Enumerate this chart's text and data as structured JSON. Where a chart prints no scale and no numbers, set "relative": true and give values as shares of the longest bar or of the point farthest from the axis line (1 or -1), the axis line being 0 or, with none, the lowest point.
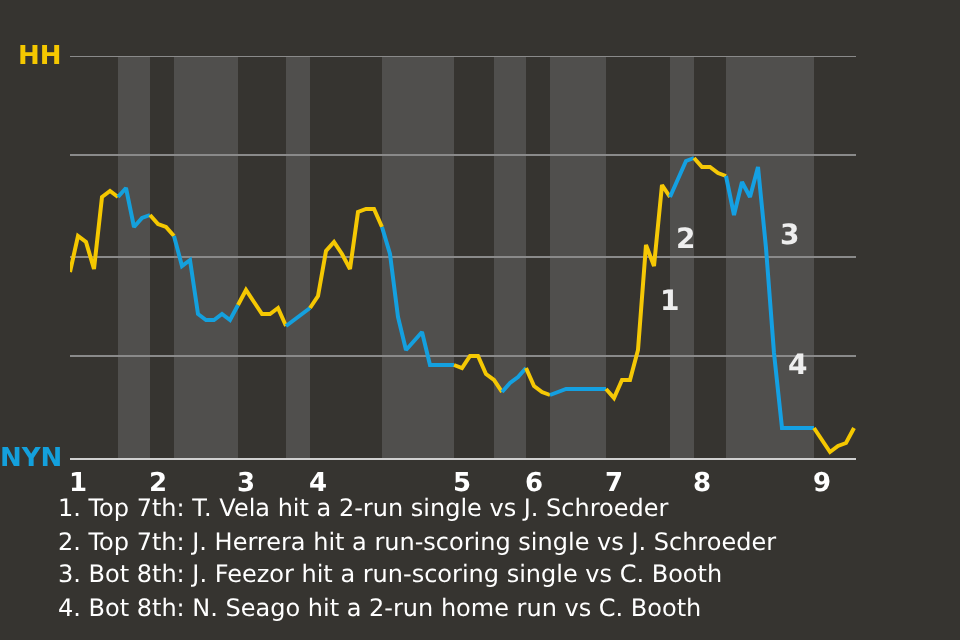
{
  "chart_data": {
    "type": "line",
    "relative": true,
    "categories": [
      null,
      "1",
      null,
      null,
      null,
      null,
      null,
      null,
      null,
      null,
      null,
      "2",
      null,
      null,
      null,
      null,
      null,
      null,
      null,
      null,
      null,
      null,
      "3",
      null,
      null,
      null,
      null,
      null,
      null,
      null,
      null,
      "4",
      null,
      null,
      null,
      null,
      null,
      null,
      null,
      null,
      null,
      null,
      null,
      null,
      null,
      null,
      null,
      null,
      null,
      "5",
      null,
      null,
      null,
      null,
      null,
      null,
      null,
      null,
      "6",
      null,
      null,
      null,
      null,
      null,
      null,
      null,
      null,
      null,
      "7",
      null,
      null,
      null,
      null,
      null,
      null,
      null,
      null,
      null,
      null,
      "8",
      null,
      null,
      null,
      null,
      null,
      null,
      null,
      null,
      null,
      null,
      null,
      null,
      null,
      null,
      "9",
      null,
      null,
      null,
      null
    ],
    "ref_lines": [
      {
        "axis": "y",
        "value": 0.34,
        "color": "#8a8a8a"
      },
      {
        "axis": "y",
        "value": 0.67,
        "color": "#8a8a8a"
      },
      {
        "axis": "y",
        "value": 1.01,
        "color": "#8a8a8a"
      },
      {
        "axis": "y",
        "value": 1.34,
        "color": "#8a8a8a"
      }
    ],
    "legend": false,
    "series": [
      {
        "name": "HH",
        "color": "#f5c800",
        "values": [
          0.62,
          0.74,
          0.72,
          0.63,
          0.87,
          0.89,
          0.87,
          null,
          null,
          null,
          null,
          null,
          null,
          null,
          null,
          null,
          null,
          null,
          null,
          null,
          null,
          null,
          null,
          null,
          null,
          null,
          null,
          null,
          null,
          null,
          null,
          null,
          null,
          null,
          null,
          null,
          null,
          null,
          null,
          null,
          null,
          null,
          null,
          null,
          null,
          null,
          null,
          null,
          null,
          null,
          null,
          null,
          null,
          null,
          null,
          null,
          null,
          null,
          null,
          null,
          null,
          null,
          null,
          null,
          null,
          null,
          null,
          null,
          null,
          null,
          null,
          null,
          null,
          null,
          null,
          null,
          null,
          null,
          null,
          null,
          null,
          null,
          null,
          null,
          null,
          null,
          null,
          null,
          null,
          null,
          null,
          null,
          null,
          null,
          null,
          null,
          null,
          null,
          null
        ]
      },
      {
        "name": "NYN",
        "color": "#14a0dc",
        "values": [
          null,
          null,
          null,
          null,
          null,
          null,
          0.87,
          0.9,
          0.77,
          0.8,
          0.81,
          null,
          null,
          null,
          null,
          null,
          null,
          null,
          null,
          null,
          null,
          null,
          null,
          null,
          null,
          null,
          null,
          null,
          null,
          null,
          null,
          null,
          null,
          null,
          null,
          null,
          null,
          null,
          null,
          null,
          null,
          null,
          null,
          null,
          null,
          null,
          null,
          null,
          null,
          null,
          null,
          null,
          null,
          null,
          null,
          null,
          null,
          null,
          null,
          null,
          null,
          null,
          null,
          null,
          null,
          null,
          null,
          null,
          null,
          null,
          null,
          null,
          null,
          null,
          null,
          null,
          null,
          null,
          null,
          null,
          null,
          null,
          null,
          null,
          null,
          null,
          null,
          null,
          null,
          null,
          null,
          null,
          null,
          null,
          null,
          null,
          null,
          null,
          null
        ]
      },
      {
        "color": "#f5c801",
        "values": [
          null,
          null,
          null,
          null,
          null,
          null,
          null,
          null,
          null,
          null,
          0.81,
          0.78,
          0.77,
          0.74,
          null,
          null,
          null,
          null,
          null,
          null,
          null,
          null,
          null,
          null,
          null,
          null,
          null,
          null,
          null,
          null,
          null,
          null,
          null,
          null,
          null,
          null,
          null,
          null,
          null,
          null,
          null,
          null,
          null,
          null,
          null,
          null,
          null,
          null,
          null,
          null,
          null,
          null,
          null,
          null,
          null,
          null,
          null,
          null,
          null,
          null,
          null,
          null,
          null,
          null,
          null,
          null,
          null,
          null,
          null,
          null,
          null,
          null,
          null,
          null,
          null,
          null,
          null,
          null,
          null,
          null,
          null,
          null,
          null,
          null,
          null,
          null,
          null,
          null,
          null,
          null,
          null,
          null,
          null,
          null,
          null,
          null,
          null,
          null,
          null
        ]
      },
      {
        "color": "#14a0dd",
        "values": [
          null,
          null,
          null,
          null,
          null,
          null,
          null,
          null,
          null,
          null,
          null,
          null,
          null,
          0.74,
          0.64,
          0.66,
          0.48,
          0.46,
          0.46,
          0.48,
          0.46,
          0.51,
          null,
          null,
          null,
          null,
          null,
          null,
          null,
          null,
          null,
          null,
          null,
          null,
          null,
          null,
          null,
          null,
          null,
          null,
          null,
          null,
          null,
          null,
          null,
          null,
          null,
          null,
          null,
          null,
          null,
          null,
          null,
          null,
          null,
          null,
          null,
          null,
          null,
          null,
          null,
          null,
          null,
          null,
          null,
          null,
          null,
          null,
          null,
          null,
          null,
          null,
          null,
          null,
          null,
          null,
          null,
          null,
          null,
          null,
          null,
          null,
          null,
          null,
          null,
          null,
          null,
          null,
          null,
          null,
          null,
          null,
          null,
          null,
          null,
          null,
          null,
          null,
          null
        ]
      },
      {
        "color": "#f5c802",
        "values": [
          null,
          null,
          null,
          null,
          null,
          null,
          null,
          null,
          null,
          null,
          null,
          null,
          null,
          null,
          null,
          null,
          null,
          null,
          null,
          null,
          null,
          0.51,
          0.56,
          0.52,
          0.48,
          0.48,
          0.5,
          0.44,
          null,
          null,
          null,
          null,
          null,
          null,
          null,
          null,
          null,
          null,
          null,
          null,
          null,
          null,
          null,
          null,
          null,
          null,
          null,
          null,
          null,
          null,
          null,
          null,
          null,
          null,
          null,
          null,
          null,
          null,
          null,
          null,
          null,
          null,
          null,
          null,
          null,
          null,
          null,
          null,
          null,
          null,
          null,
          null,
          null,
          null,
          null,
          null,
          null,
          null,
          null,
          null,
          null,
          null,
          null,
          null,
          null,
          null,
          null,
          null,
          null,
          null,
          null,
          null,
          null,
          null,
          null,
          null,
          null,
          null,
          null
        ]
      },
      {
        "color": "#14a0de",
        "values": [
          null,
          null,
          null,
          null,
          null,
          null,
          null,
          null,
          null,
          null,
          null,
          null,
          null,
          null,
          null,
          null,
          null,
          null,
          null,
          null,
          null,
          null,
          null,
          null,
          null,
          null,
          null,
          0.44,
          0.46,
          0.48,
          0.5,
          null,
          null,
          null,
          null,
          null,
          null,
          null,
          null,
          null,
          null,
          null,
          null,
          null,
          null,
          null,
          null,
          null,
          null,
          null,
          null,
          null,
          null,
          null,
          null,
          null,
          null,
          null,
          null,
          null,
          null,
          null,
          null,
          null,
          null,
          null,
          null,
          null,
          null,
          null,
          null,
          null,
          null,
          null,
          null,
          null,
          null,
          null,
          null,
          null,
          null,
          null,
          null,
          null,
          null,
          null,
          null,
          null,
          null,
          null,
          null,
          null,
          null,
          null,
          null,
          null,
          null,
          null,
          null
        ]
      },
      {
        "color": "#f5c803",
        "values": [
          null,
          null,
          null,
          null,
          null,
          null,
          null,
          null,
          null,
          null,
          null,
          null,
          null,
          null,
          null,
          null,
          null,
          null,
          null,
          null,
          null,
          null,
          null,
          null,
          null,
          null,
          null,
          null,
          null,
          null,
          0.5,
          0.54,
          0.69,
          0.72,
          0.68,
          0.63,
          0.82,
          0.83,
          0.83,
          0.77,
          null,
          null,
          null,
          null,
          null,
          null,
          null,
          null,
          null,
          null,
          null,
          null,
          null,
          null,
          null,
          null,
          null,
          null,
          null,
          null,
          null,
          null,
          null,
          null,
          null,
          null,
          null,
          null,
          null,
          null,
          null,
          null,
          null,
          null,
          null,
          null,
          null,
          null,
          null,
          null,
          null,
          null,
          null,
          null,
          null,
          null,
          null,
          null,
          null,
          null,
          null,
          null,
          null,
          null,
          null,
          null,
          null,
          null,
          null
        ]
      },
      {
        "color": "#14a0df",
        "values": [
          null,
          null,
          null,
          null,
          null,
          null,
          null,
          null,
          null,
          null,
          null,
          null,
          null,
          null,
          null,
          null,
          null,
          null,
          null,
          null,
          null,
          null,
          null,
          null,
          null,
          null,
          null,
          null,
          null,
          null,
          null,
          null,
          null,
          null,
          null,
          null,
          null,
          null,
          null,
          0.77,
          0.68,
          0.47,
          0.36,
          0.39,
          0.42,
          0.31,
          0.31,
          0.31,
          0.31,
          null,
          null,
          null,
          null,
          null,
          null,
          null,
          null,
          null,
          null,
          null,
          null,
          null,
          null,
          null,
          null,
          null,
          null,
          null,
          null,
          null,
          null,
          null,
          null,
          null,
          null,
          null,
          null,
          null,
          null,
          null,
          null,
          null,
          null,
          null,
          null,
          null,
          null,
          null,
          null,
          null,
          null,
          null,
          null,
          null,
          null,
          null,
          null,
          null,
          null
        ]
      },
      {
        "color": "#f5c804",
        "values": [
          null,
          null,
          null,
          null,
          null,
          null,
          null,
          null,
          null,
          null,
          null,
          null,
          null,
          null,
          null,
          null,
          null,
          null,
          null,
          null,
          null,
          null,
          null,
          null,
          null,
          null,
          null,
          null,
          null,
          null,
          null,
          null,
          null,
          null,
          null,
          null,
          null,
          null,
          null,
          null,
          null,
          null,
          null,
          null,
          null,
          null,
          null,
          null,
          0.31,
          0.3,
          0.34,
          0.34,
          0.28,
          0.26,
          0.22,
          null,
          null,
          null,
          null,
          null,
          null,
          null,
          null,
          null,
          null,
          null,
          null,
          null,
          null,
          null,
          null,
          null,
          null,
          null,
          null,
          null,
          null,
          null,
          null,
          null,
          null,
          null,
          null,
          null,
          null,
          null,
          null,
          null,
          null,
          null,
          null,
          null,
          null,
          null,
          null,
          null,
          null,
          null,
          null
        ]
      },
      {
        "color": "#14a0e0",
        "values": [
          null,
          null,
          null,
          null,
          null,
          null,
          null,
          null,
          null,
          null,
          null,
          null,
          null,
          null,
          null,
          null,
          null,
          null,
          null,
          null,
          null,
          null,
          null,
          null,
          null,
          null,
          null,
          null,
          null,
          null,
          null,
          null,
          null,
          null,
          null,
          null,
          null,
          null,
          null,
          null,
          null,
          null,
          null,
          null,
          null,
          null,
          null,
          null,
          null,
          null,
          null,
          null,
          null,
          null,
          0.22,
          0.25,
          0.27,
          0.3,
          null,
          null,
          null,
          null,
          null,
          null,
          null,
          null,
          null,
          null,
          null,
          null,
          null,
          null,
          null,
          null,
          null,
          null,
          null,
          null,
          null,
          null,
          null,
          null,
          null,
          null,
          null,
          null,
          null,
          null,
          null,
          null,
          null,
          null,
          null,
          null,
          null,
          null,
          null,
          null,
          null
        ]
      },
      {
        "color": "#f5c805",
        "values": [
          null,
          null,
          null,
          null,
          null,
          null,
          null,
          null,
          null,
          null,
          null,
          null,
          null,
          null,
          null,
          null,
          null,
          null,
          null,
          null,
          null,
          null,
          null,
          null,
          null,
          null,
          null,
          null,
          null,
          null,
          null,
          null,
          null,
          null,
          null,
          null,
          null,
          null,
          null,
          null,
          null,
          null,
          null,
          null,
          null,
          null,
          null,
          null,
          null,
          null,
          null,
          null,
          null,
          null,
          null,
          null,
          null,
          0.3,
          0.24,
          0.22,
          0.21,
          null,
          null,
          null,
          null,
          null,
          null,
          null,
          null,
          null,
          null,
          null,
          null,
          null,
          null,
          null,
          null,
          null,
          null,
          null,
          null,
          null,
          null,
          null,
          null,
          null,
          null,
          null,
          null,
          null,
          null,
          null,
          null,
          null,
          null,
          null,
          null,
          null,
          null
        ]
      },
      {
        "color": "#14a0e1",
        "values": [
          null,
          null,
          null,
          null,
          null,
          null,
          null,
          null,
          null,
          null,
          null,
          null,
          null,
          null,
          null,
          null,
          null,
          null,
          null,
          null,
          null,
          null,
          null,
          null,
          null,
          null,
          null,
          null,
          null,
          null,
          null,
          null,
          null,
          null,
          null,
          null,
          null,
          null,
          null,
          null,
          null,
          null,
          null,
          null,
          null,
          null,
          null,
          null,
          null,
          null,
          null,
          null,
          null,
          null,
          null,
          null,
          null,
          null,
          null,
          null,
          0.21,
          0.22,
          0.23,
          0.23,
          0.23,
          0.23,
          0.23,
          0.23,
          null,
          null,
          null,
          null,
          null,
          null,
          null,
          null,
          null,
          null,
          null,
          null,
          null,
          null,
          null,
          null,
          null,
          null,
          null,
          null,
          null,
          null,
          null,
          null,
          null,
          null,
          null,
          null,
          null,
          null,
          null
        ]
      },
      {
        "color": "#f5c806",
        "values": [
          null,
          null,
          null,
          null,
          null,
          null,
          null,
          null,
          null,
          null,
          null,
          null,
          null,
          null,
          null,
          null,
          null,
          null,
          null,
          null,
          null,
          null,
          null,
          null,
          null,
          null,
          null,
          null,
          null,
          null,
          null,
          null,
          null,
          null,
          null,
          null,
          null,
          null,
          null,
          null,
          null,
          null,
          null,
          null,
          null,
          null,
          null,
          null,
          null,
          null,
          null,
          null,
          null,
          null,
          null,
          null,
          null,
          null,
          null,
          null,
          null,
          null,
          null,
          null,
          null,
          null,
          null,
          0.23,
          0.2,
          0.26,
          0.26,
          0.36,
          0.71,
          0.64,
          0.91,
          0.87,
          null,
          null,
          null,
          null,
          null,
          null,
          null,
          null,
          null,
          null,
          null,
          null,
          null,
          null,
          null,
          null,
          null,
          null,
          null,
          null,
          null,
          null,
          null
        ]
      },
      {
        "color": "#14a0e2",
        "values": [
          null,
          null,
          null,
          null,
          null,
          null,
          null,
          null,
          null,
          null,
          null,
          null,
          null,
          null,
          null,
          null,
          null,
          null,
          null,
          null,
          null,
          null,
          null,
          null,
          null,
          null,
          null,
          null,
          null,
          null,
          null,
          null,
          null,
          null,
          null,
          null,
          null,
          null,
          null,
          null,
          null,
          null,
          null,
          null,
          null,
          null,
          null,
          null,
          null,
          null,
          null,
          null,
          null,
          null,
          null,
          null,
          null,
          null,
          null,
          null,
          null,
          null,
          null,
          null,
          null,
          null,
          null,
          null,
          null,
          null,
          null,
          null,
          null,
          null,
          null,
          0.87,
          0.93,
          0.99,
          1,
          null,
          null,
          null,
          null,
          null,
          null,
          null,
          null,
          null,
          null,
          null,
          null,
          null,
          null,
          null,
          null,
          null,
          null,
          null,
          null
        ]
      },
      {
        "color": "#f5c807",
        "values": [
          null,
          null,
          null,
          null,
          null,
          null,
          null,
          null,
          null,
          null,
          null,
          null,
          null,
          null,
          null,
          null,
          null,
          null,
          null,
          null,
          null,
          null,
          null,
          null,
          null,
          null,
          null,
          null,
          null,
          null,
          null,
          null,
          null,
          null,
          null,
          null,
          null,
          null,
          null,
          null,
          null,
          null,
          null,
          null,
          null,
          null,
          null,
          null,
          null,
          null,
          null,
          null,
          null,
          null,
          null,
          null,
          null,
          null,
          null,
          null,
          null,
          null,
          null,
          null,
          null,
          null,
          null,
          null,
          null,
          null,
          null,
          null,
          null,
          null,
          null,
          null,
          null,
          null,
          1,
          0.97,
          0.97,
          0.95,
          0.94,
          null,
          null,
          null,
          null,
          null,
          null,
          null,
          null,
          null,
          null,
          null,
          null,
          null,
          null,
          null,
          null
        ]
      },
      {
        "color": "#14a0e3",
        "values": [
          null,
          null,
          null,
          null,
          null,
          null,
          null,
          null,
          null,
          null,
          null,
          null,
          null,
          null,
          null,
          null,
          null,
          null,
          null,
          null,
          null,
          null,
          null,
          null,
          null,
          null,
          null,
          null,
          null,
          null,
          null,
          null,
          null,
          null,
          null,
          null,
          null,
          null,
          null,
          null,
          null,
          null,
          null,
          null,
          null,
          null,
          null,
          null,
          null,
          null,
          null,
          null,
          null,
          null,
          null,
          null,
          null,
          null,
          null,
          null,
          null,
          null,
          null,
          null,
          null,
          null,
          null,
          null,
          null,
          null,
          null,
          null,
          null,
          null,
          null,
          null,
          null,
          null,
          null,
          null,
          null,
          null,
          0.94,
          0.81,
          0.92,
          0.87,
          0.97,
          0.7,
          0.35,
          0.1,
          0.1,
          0.1,
          0.1,
          0.1,
          null,
          null,
          null,
          null,
          null
        ]
      },
      {
        "color": "#f5c800",
        "values": [
          null,
          null,
          null,
          null,
          null,
          null,
          null,
          null,
          null,
          null,
          null,
          null,
          null,
          null,
          null,
          null,
          null,
          null,
          null,
          null,
          null,
          null,
          null,
          null,
          null,
          null,
          null,
          null,
          null,
          null,
          null,
          null,
          null,
          null,
          null,
          null,
          null,
          null,
          null,
          null,
          null,
          null,
          null,
          null,
          null,
          null,
          null,
          null,
          null,
          null,
          null,
          null,
          null,
          null,
          null,
          null,
          null,
          null,
          null,
          null,
          null,
          null,
          null,
          null,
          null,
          null,
          null,
          null,
          null,
          null,
          null,
          null,
          null,
          null,
          null,
          null,
          null,
          null,
          null,
          null,
          null,
          null,
          null,
          null,
          null,
          null,
          null,
          null,
          null,
          null,
          null,
          null,
          null,
          0.1,
          0.06,
          0.02,
          0.04,
          0.05,
          0.1
        ]
      }
    ],
    "annotations": [
      "1",
      "2",
      "3",
      "4",
      "1. Top 7th: T. Vela hit a 2-run single vs J. Schroeder",
      "2. Top 7th: J. Herrera hit a run-scoring single vs J. Schroeder",
      "3. Bot 8th: J. Feezor hit a run-scoring single vs C. Booth",
      "4. Bot 8th: N. Seago hit a 2-run home run vs C. Booth"
    ]
  }
}
